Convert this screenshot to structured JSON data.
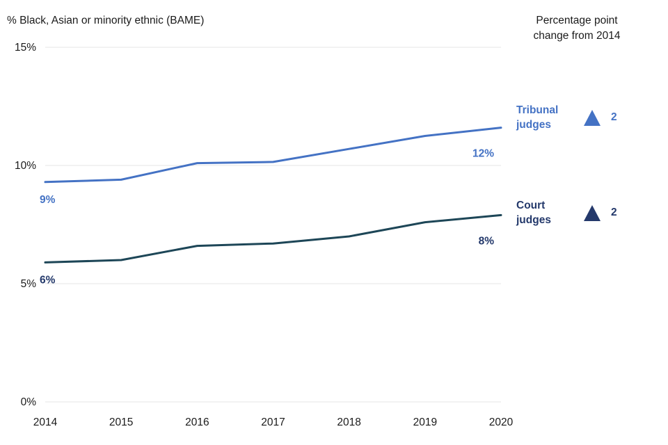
{
  "right_header": {
    "line1": "Percentage point",
    "line2": "change from 2014"
  },
  "chart_data": {
    "type": "line",
    "title": "% Black, Asian or minority ethnic (BAME)",
    "x": [
      "2014",
      "2015",
      "2016",
      "2017",
      "2018",
      "2019",
      "2020"
    ],
    "ylim": [
      0,
      15
    ],
    "yticks": [
      0,
      5,
      10,
      15
    ],
    "ytick_suffix": "%",
    "grid": true,
    "legend_position": "right",
    "gridline_color": "#e4e4e4",
    "series": [
      {
        "name": "Tribunal judges",
        "color": "#4472c4",
        "label_color": "#4472c4",
        "values": [
          9.3,
          9.4,
          10.1,
          10.15,
          10.7,
          11.25,
          11.6
        ],
        "start_label": "9%",
        "end_label": "12%",
        "change": "2"
      },
      {
        "name": "Court judges",
        "color": "#1d4657",
        "label_color": "#24396b",
        "values": [
          5.9,
          6.0,
          6.6,
          6.7,
          7.0,
          7.6,
          7.9
        ],
        "start_label": "6%",
        "end_label": "8%",
        "change": "2"
      }
    ]
  }
}
